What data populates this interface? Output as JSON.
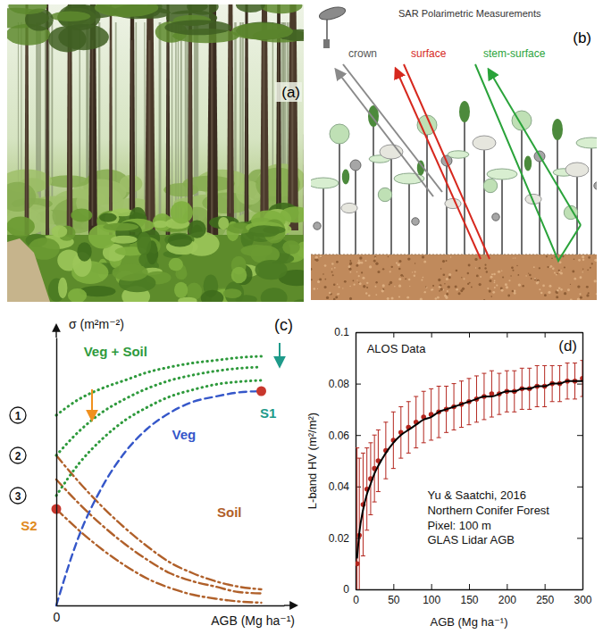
{
  "photo": {
    "label": "(a)"
  },
  "diagram": {
    "title": "SAR Polarimetric Measurements",
    "label": "(b)",
    "rays": [
      "crown",
      "surface",
      "stem-surface"
    ]
  },
  "chart_data": [
    {
      "type": "line",
      "label": "(c)",
      "xlabel": "AGB (Mg ha⁻¹)",
      "ylabel": "σ (m²m⁻²)",
      "x": [
        0,
        1,
        2,
        3,
        4,
        5,
        6,
        7,
        8,
        9
      ],
      "xlim": [
        0,
        10
      ],
      "ylim": [
        0,
        10
      ],
      "xticks": [
        0
      ],
      "yticks": [],
      "tick_labels": "x",
      "series": [
        {
          "color": "#b0602a",
          "line_style": "dashdot",
          "values": [
            5.6,
            4.6,
            3.7,
            2.9,
            2.2,
            1.6,
            1.2,
            0.9,
            0.7,
            0.6
          ]
        },
        {
          "color": "#b0602a",
          "line_style": "dashdot",
          "values": [
            4.7,
            3.8,
            3.0,
            2.3,
            1.7,
            1.2,
            0.9,
            0.7,
            0.5,
            0.45
          ]
        },
        {
          "color": "#b0602a",
          "line_style": "dashdot",
          "values": [
            3.6,
            2.8,
            2.1,
            1.5,
            1.0,
            0.65,
            0.4,
            0.25,
            0.15,
            0.1
          ]
        },
        {
          "color": "#2e9a3c",
          "line_style": "dotted",
          "values": [
            7.1,
            7.7,
            8.1,
            8.4,
            8.7,
            8.9,
            9.05,
            9.15,
            9.25,
            9.3
          ]
        },
        {
          "color": "#2e9a3c",
          "line_style": "dotted",
          "values": [
            5.6,
            6.5,
            7.2,
            7.7,
            8.1,
            8.4,
            8.6,
            8.75,
            8.85,
            8.9
          ]
        },
        {
          "color": "#2e9a3c",
          "line_style": "dotted",
          "values": [
            4.1,
            5.3,
            6.2,
            6.9,
            7.4,
            7.8,
            8.05,
            8.25,
            8.35,
            8.4
          ]
        },
        {
          "color": "#3557c9",
          "line_style": "dashed",
          "values": [
            0,
            2.6,
            4.4,
            5.7,
            6.6,
            7.2,
            7.6,
            7.8,
            7.95,
            8.0
          ]
        }
      ],
      "points": [
        {
          "x": 9,
          "y": 8.0,
          "color": "#c8372d"
        },
        {
          "x": 0,
          "y": 3.6,
          "color": "#c8372d"
        }
      ],
      "levels": [
        {
          "label": "1",
          "value": 7.1
        },
        {
          "label": "2",
          "value": 5.6
        },
        {
          "label": "3",
          "value": 4.1
        }
      ],
      "annotations": [
        {
          "text": "Veg + Soil",
          "x": 2.6,
          "y": 9.3,
          "color": "#2e9a3c"
        },
        {
          "text": "Veg",
          "x": 5.6,
          "y": 6.2,
          "color": "#3557c9"
        },
        {
          "text": "Soil",
          "x": 7.6,
          "y": 3.3,
          "color": "#b0602a"
        },
        {
          "text": "S1",
          "x": 9.3,
          "y": 7.0,
          "color": "#1e9a8a"
        },
        {
          "text": "S2",
          "x": -1.2,
          "y": 2.8,
          "color": "#e08a1e"
        }
      ]
    },
    {
      "type": "scatter",
      "label": "(d)",
      "xlabel": "AGB (Mg ha⁻¹)",
      "ylabel": "L-band HV (m²/m²)",
      "x": [
        2,
        5,
        10,
        15,
        20,
        25,
        30,
        40,
        50,
        60,
        70,
        80,
        90,
        100,
        110,
        120,
        130,
        140,
        150,
        160,
        170,
        180,
        190,
        200,
        210,
        220,
        230,
        240,
        250,
        260,
        270,
        280,
        290,
        300
      ],
      "xlim": [
        0,
        300
      ],
      "ylim": [
        0,
        0.1
      ],
      "xticks": [
        0,
        50,
        100,
        150,
        200,
        250,
        300
      ],
      "yticks": [
        0,
        0.02,
        0.04,
        0.06,
        0.08,
        0.1
      ],
      "series": [
        {
          "type": "scatter",
          "color": "#b3261e",
          "marker": "circle",
          "values": [
            0.01,
            0.021,
            0.033,
            0.039,
            0.043,
            0.047,
            0.05,
            0.054,
            0.058,
            0.061,
            0.063,
            0.065,
            0.067,
            0.068,
            0.069,
            0.07,
            0.071,
            0.072,
            0.073,
            0.074,
            0.075,
            0.076,
            0.076,
            0.077,
            0.077,
            0.078,
            0.078,
            0.079,
            0.079,
            0.08,
            0.08,
            0.081,
            0.081,
            0.082
          ],
          "errors": [
            0.045,
            0.03,
            0.02,
            0.016,
            0.014,
            0.013,
            0.012,
            0.011,
            0.011,
            0.01,
            0.01,
            0.01,
            0.01,
            0.01,
            0.01,
            0.009,
            0.009,
            0.009,
            0.009,
            0.009,
            0.009,
            0.009,
            0.008,
            0.008,
            0.008,
            0.008,
            0.008,
            0.008,
            0.008,
            0.007,
            0.007,
            0.007,
            0.007,
            0.007
          ]
        },
        {
          "type": "line",
          "color": "#000000",
          "line_style": "solid",
          "values": [
            0.012,
            0.022,
            0.031,
            0.037,
            0.041,
            0.045,
            0.048,
            0.053,
            0.057,
            0.06,
            0.062,
            0.064,
            0.066,
            0.067,
            0.069,
            0.07,
            0.071,
            0.072,
            0.073,
            0.074,
            0.075,
            0.075,
            0.076,
            0.077,
            0.077,
            0.078,
            0.078,
            0.079,
            0.079,
            0.08,
            0.08,
            0.081,
            0.081,
            0.081
          ]
        }
      ],
      "annotations": [
        {
          "text": "ALOS Data",
          "x": 15,
          "y": 0.092
        },
        {
          "text": "Yu & Saatchi, 2016",
          "x": 95,
          "y": 0.035
        },
        {
          "text": "Northern Conifer Forest",
          "x": 95,
          "y": 0.0292
        },
        {
          "text": "Pixel: 100 m",
          "x": 95,
          "y": 0.0234
        },
        {
          "text": "GLAS Lidar AGB",
          "x": 95,
          "y": 0.0176
        }
      ]
    }
  ]
}
